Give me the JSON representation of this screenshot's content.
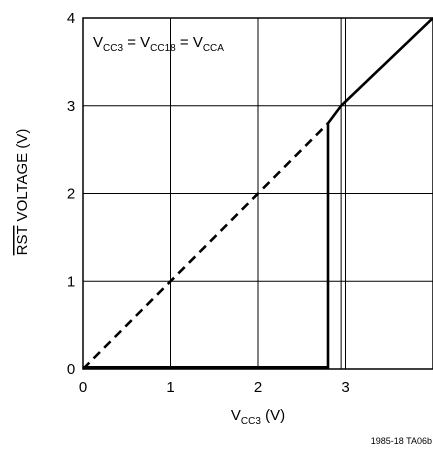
{
  "chart_data": {
    "type": "line",
    "xlabel": {
      "main": "V",
      "sub": "CC3",
      "unit": " (V)"
    },
    "ylabel": {
      "overlined": "RST",
      "rest": " VOLTAGE (V)"
    },
    "annotation": {
      "parts": [
        {
          "t": "V",
          "sub": false
        },
        {
          "t": "CC3",
          "sub": true
        },
        {
          "t": " = V",
          "sub": false
        },
        {
          "t": "CC18",
          "sub": true
        },
        {
          "t": " = V",
          "sub": false
        },
        {
          "t": "CCA",
          "sub": true
        }
      ]
    },
    "xlim": [
      0,
      4
    ],
    "ylim": [
      0,
      4
    ],
    "x_ticks": [
      "0",
      "1",
      "2",
      "3"
    ],
    "y_ticks": [
      "0",
      "1",
      "2",
      "3",
      "4"
    ],
    "grid": true,
    "extra_gridline_x": 2.95,
    "series": [
      {
        "style": "dashed",
        "x": [
          0,
          2.8
        ],
        "y": [
          0,
          2.8
        ]
      },
      {
        "style": "solid",
        "x": [
          0,
          2.8,
          2.8,
          2.95,
          4
        ],
        "y": [
          0.02,
          0.02,
          2.8,
          3.0,
          4.0
        ]
      }
    ],
    "footnote": "1985-18 TA06b",
    "colors": {
      "line": "#000000",
      "grid": "#000000",
      "background": "#ffffff"
    }
  }
}
